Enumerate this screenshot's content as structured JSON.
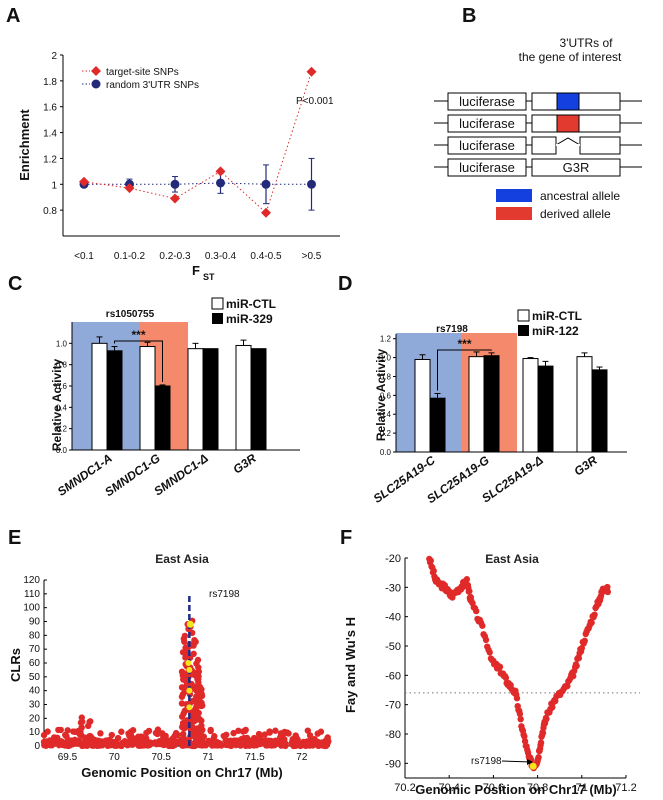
{
  "panel_labels": [
    "A",
    "B",
    "C",
    "D",
    "E",
    "F"
  ],
  "colors": {
    "red": "#e02a2a",
    "navy": "#232a7a",
    "blue_bg": "#8fa9d8",
    "orange_bg": "#f4896b",
    "ancestral": "#1440e0",
    "derived": "#e33a30",
    "yellow": "#f5e51a",
    "dark_blue": "#1b2a8c"
  },
  "construct": {
    "title_line1": "3'UTRs of",
    "title_line2": "the gene of interest",
    "luciferase_label": "luciferase",
    "g3r_label": "G3R",
    "legend_ancestral": "ancestral allele",
    "legend_derived": "derived allele"
  },
  "chart_data": [
    {
      "panel": "A",
      "type": "scatter",
      "ylabel": "Enrichment",
      "xlabel": "F",
      "xlabel_sub": "ST",
      "categories": [
        "<0.1",
        "0.1-0.2",
        "0.2-0.3",
        "0.3-0.4",
        "0.4-0.5",
        ">0.5"
      ],
      "ylim": [
        0.6,
        2.0
      ],
      "yticks": [
        "0.8",
        "1",
        "1.2",
        "1.4",
        "1.6",
        "1.8",
        "2"
      ],
      "annotation": "P<0.001",
      "series": [
        {
          "name": "target-site SNPs",
          "marker": "diamond",
          "values": [
            1.02,
            0.97,
            0.89,
            1.1,
            0.78,
            1.87
          ]
        },
        {
          "name": "random 3'UTR SNPs",
          "marker": "circle",
          "values": [
            1.0,
            1.0,
            1.0,
            1.01,
            1.0,
            1.0
          ],
          "err": [
            0.02,
            0.04,
            0.06,
            0.08,
            0.15,
            0.2
          ]
        }
      ]
    },
    {
      "panel": "C",
      "type": "bar",
      "ylabel": "Relative Activity",
      "categories": [
        "SMNDC1-A",
        "SMNDC1-G",
        "SMNDC1-Δ",
        "G3R"
      ],
      "yticks": [
        "0.0",
        "0.2",
        "0.4",
        "0.6",
        "0.8",
        "1.0"
      ],
      "ylim": [
        0,
        1.2
      ],
      "snp": "rs1050755",
      "sig": "***",
      "series": [
        {
          "name": "miR-CTL",
          "values": [
            1.0,
            0.97,
            0.95,
            0.98
          ],
          "err": [
            0.06,
            0.04,
            0.05,
            0.05
          ]
        },
        {
          "name": "miR-329",
          "values": [
            0.93,
            0.6,
            0.95,
            0.95
          ],
          "err": [
            0.04,
            0.01,
            0.0,
            0.0
          ]
        }
      ]
    },
    {
      "panel": "D",
      "type": "bar",
      "ylabel": "Relative Activity",
      "categories": [
        "SLC25A19-C",
        "SLC25A19-G",
        "SLC25A19-Δ",
        "G3R"
      ],
      "yticks": [
        "0.0",
        "0.2",
        "0.4",
        "0.6",
        "0.8",
        "1.0",
        "1.2"
      ],
      "ylim": [
        0,
        1.25
      ],
      "snp": "rs7198",
      "sig": "***",
      "series": [
        {
          "name": "miR-CTL",
          "values": [
            0.98,
            1.01,
            0.99,
            1.01
          ],
          "err": [
            0.05,
            0.05,
            0.01,
            0.04
          ]
        },
        {
          "name": "miR-122",
          "values": [
            0.57,
            1.02,
            0.91,
            0.87
          ],
          "err": [
            0.05,
            0.03,
            0.05,
            0.03
          ]
        }
      ]
    },
    {
      "panel": "E",
      "type": "scatter",
      "title": "East Asia",
      "xlabel": "Genomic Position on Chr17 (Mb)",
      "ylabel": "CLRs",
      "xlim": [
        69.25,
        72.3
      ],
      "ylim": [
        0,
        120
      ],
      "xticks": [
        "69.5",
        "70",
        "70.5",
        "71",
        "71.5",
        "72"
      ],
      "yticks": [
        "0",
        "10",
        "20",
        "30",
        "40",
        "50",
        "60",
        "70",
        "80",
        "90",
        "100",
        "110",
        "120"
      ],
      "annotation": "rs7198",
      "highlight": {
        "x": 70.81,
        "y": 88
      }
    },
    {
      "panel": "F",
      "type": "scatter",
      "title": "East Asia",
      "xlabel": "Genomic Position on Chr17 (Mb)",
      "ylabel": "Fay and Wu's H",
      "xlim": [
        70.2,
        71.2
      ],
      "ylim": [
        -95,
        -20
      ],
      "xticks": [
        "70.2",
        "70.4",
        "70.6",
        "70.8",
        "71",
        "71.2"
      ],
      "yticks": [
        "-20",
        "-30",
        "-40",
        "-50",
        "-60",
        "-70",
        "-80",
        "-90"
      ],
      "threshold": -66,
      "annotation": "rs7198",
      "highlight": {
        "x": 70.78,
        "y": -91
      }
    }
  ]
}
